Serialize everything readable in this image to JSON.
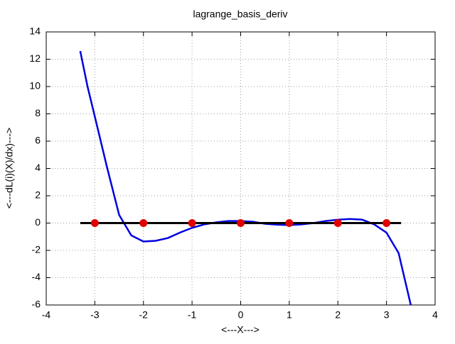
{
  "chart_data": {
    "type": "line",
    "title": "lagrange_basis_deriv",
    "x_label": "<---X--->",
    "y_label": "<---dL(i)(X)/dx)--->",
    "xlim": [
      -4,
      4
    ],
    "xticks": [
      -4,
      -3,
      -2,
      -1,
      0,
      1,
      2,
      3,
      4
    ],
    "ylim": [
      -6,
      14
    ],
    "yticks": [
      -6,
      -4,
      -2,
      0,
      2,
      4,
      6,
      8,
      10,
      12,
      14
    ],
    "grid": true,
    "series": [
      {
        "style": "line",
        "color": "#0000e0",
        "width": 2.5,
        "x": [
          -3.3,
          -3.15,
          -3.0,
          -2.75,
          -2.5,
          -2.25,
          -2.0,
          -1.75,
          -1.5,
          -1.25,
          -1.0,
          -0.75,
          -0.5,
          -0.25,
          0,
          0.25,
          0.5,
          0.75,
          1.0,
          1.25,
          1.5,
          1.75,
          2.0,
          2.25,
          2.5,
          2.75,
          3.0,
          3.25,
          3.5
        ],
        "values": [
          12.6,
          10.0,
          7.8,
          4.1,
          0.6,
          -0.9,
          -1.35,
          -1.3,
          -1.1,
          -0.7,
          -0.35,
          -0.1,
          0.05,
          0.15,
          0.15,
          0.1,
          -0.05,
          -0.12,
          -0.15,
          -0.1,
          0.0,
          0.15,
          0.25,
          0.3,
          0.25,
          -0.1,
          -0.7,
          -2.2,
          -6
        ]
      },
      {
        "style": "line",
        "color": "#000000",
        "width": 3,
        "x": [
          -3.3,
          3.3
        ],
        "values": [
          0,
          0
        ]
      },
      {
        "style": "points",
        "color": "#e00000",
        "x": [
          -3,
          -2,
          -1,
          0,
          1,
          2,
          3
        ],
        "values": [
          0,
          0,
          0,
          0,
          0,
          0,
          0
        ]
      }
    ]
  }
}
